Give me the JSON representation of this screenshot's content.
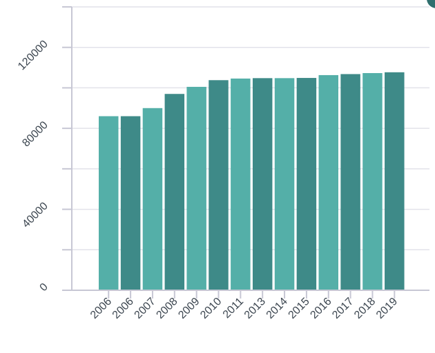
{
  "chart_data": {
    "type": "bar",
    "title": "",
    "xlabel": "",
    "ylabel": "",
    "categories": [
      "2006",
      "2006",
      "2007",
      "2008",
      "2009",
      "2010",
      "2011",
      "2013",
      "2014",
      "2015",
      "2016",
      "2017",
      "2018",
      "2019"
    ],
    "values": [
      86000,
      86000,
      90000,
      97000,
      100500,
      103800,
      104600,
      104800,
      104800,
      104900,
      106300,
      106800,
      107300,
      107700
    ],
    "ylim": [
      0,
      140000
    ],
    "y_tick_labels": [
      "0",
      "40000",
      "80000",
      "120000"
    ],
    "y_tick_values": [
      0,
      40000,
      80000,
      120000
    ],
    "y_grid_values": [
      20000,
      40000,
      60000,
      80000,
      100000,
      120000,
      140000
    ],
    "grid": true,
    "legend": "none",
    "colors": {
      "bar_light": "#54afa8",
      "bar_dark": "#3e8a88",
      "grid": "#e2e2ea",
      "axis": "#c7c7d4",
      "text": "#3c4650"
    }
  }
}
